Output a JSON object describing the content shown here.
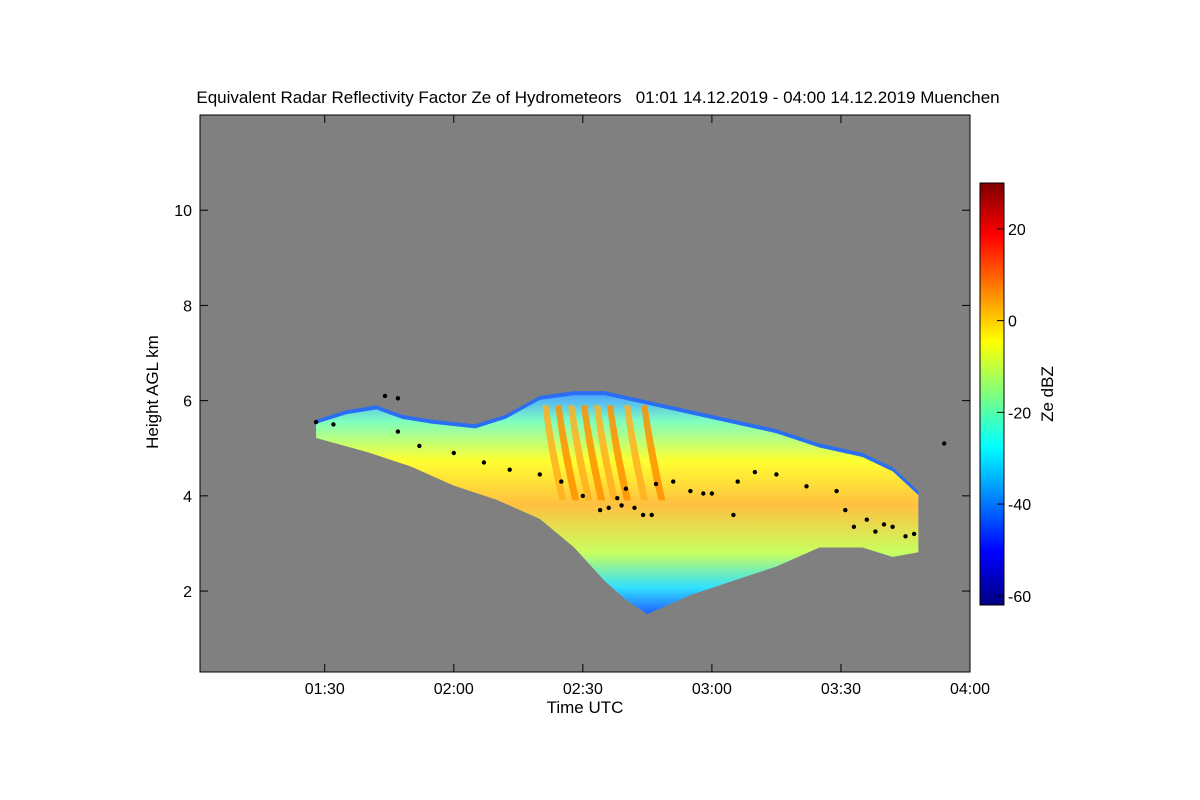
{
  "chart_data": {
    "type": "heatmap",
    "title": "Equivalent Radar Reflectivity Factor Ze of Hydrometeors   01:01 14.12.2019 - 04:00 14.12.2019 Muenchen",
    "xlabel": "Time UTC",
    "ylabel": "Height AGL km",
    "colorbar_label": "Ze dBZ",
    "xlim": [
      "01:01",
      "04:00"
    ],
    "ylim": [
      0.3,
      12.0
    ],
    "x_ticks": [
      "01:30",
      "02:00",
      "02:30",
      "03:00",
      "03:30",
      "04:00"
    ],
    "y_ticks": [
      2,
      4,
      6,
      8,
      10
    ],
    "colorbar_range": [
      -62,
      30
    ],
    "colorbar_ticks": [
      -60,
      -40,
      -20,
      0,
      20
    ],
    "colormap": [
      "#00007f",
      "#0000ff",
      "#007fff",
      "#00ffff",
      "#7fff7f",
      "#ffff00",
      "#ff7f00",
      "#ff0000",
      "#7f0000"
    ],
    "background_color": "#808080",
    "cloud": {
      "top_km": [
        [
          "01:28",
          5.6
        ],
        [
          "01:35",
          5.8
        ],
        [
          "01:42",
          5.9
        ],
        [
          "01:48",
          5.7
        ],
        [
          "01:55",
          5.6
        ],
        [
          "02:05",
          5.5
        ],
        [
          "02:12",
          5.7
        ],
        [
          "02:20",
          6.1
        ],
        [
          "02:28",
          6.2
        ],
        [
          "02:35",
          6.2
        ],
        [
          "02:45",
          6.0
        ],
        [
          "02:55",
          5.8
        ],
        [
          "03:05",
          5.6
        ],
        [
          "03:15",
          5.4
        ],
        [
          "03:25",
          5.1
        ],
        [
          "03:35",
          4.9
        ],
        [
          "03:42",
          4.6
        ],
        [
          "03:48",
          4.1
        ]
      ],
      "base_km": [
        [
          "01:28",
          5.3
        ],
        [
          "01:40",
          5.0
        ],
        [
          "01:50",
          4.7
        ],
        [
          "02:00",
          4.3
        ],
        [
          "02:10",
          4.0
        ],
        [
          "02:20",
          3.6
        ],
        [
          "02:28",
          3.0
        ],
        [
          "02:35",
          2.3
        ],
        [
          "02:40",
          1.9
        ],
        [
          "02:45",
          1.6
        ],
        [
          "02:55",
          2.0
        ],
        [
          "03:05",
          2.3
        ],
        [
          "03:15",
          2.6
        ],
        [
          "03:25",
          3.0
        ],
        [
          "03:35",
          3.0
        ],
        [
          "03:42",
          2.8
        ],
        [
          "03:48",
          2.9
        ]
      ],
      "core_dbz_max": 10
    },
    "melting_layer_km": [
      [
        "01:28",
        5.55
      ],
      [
        "01:32",
        5.5
      ],
      [
        "01:44",
        6.1
      ],
      [
        "01:47",
        6.05
      ],
      [
        "01:47",
        5.35
      ],
      [
        "01:52",
        5.05
      ],
      [
        "02:00",
        4.9
      ],
      [
        "02:07",
        4.7
      ],
      [
        "02:13",
        4.55
      ],
      [
        "02:20",
        4.45
      ],
      [
        "02:25",
        4.3
      ],
      [
        "02:30",
        4.0
      ],
      [
        "02:34",
        3.7
      ],
      [
        "02:36",
        3.75
      ],
      [
        "02:38",
        3.95
      ],
      [
        "02:39",
        3.8
      ],
      [
        "02:40",
        4.15
      ],
      [
        "02:42",
        3.75
      ],
      [
        "02:44",
        3.6
      ],
      [
        "02:46",
        3.6
      ],
      [
        "02:47",
        4.25
      ],
      [
        "02:51",
        4.3
      ],
      [
        "02:55",
        4.1
      ],
      [
        "02:58",
        4.05
      ],
      [
        "03:00",
        4.05
      ],
      [
        "03:05",
        3.6
      ],
      [
        "03:06",
        4.3
      ],
      [
        "03:10",
        4.5
      ],
      [
        "03:15",
        4.45
      ],
      [
        "03:22",
        4.2
      ],
      [
        "03:29",
        4.1
      ],
      [
        "03:31",
        3.7
      ],
      [
        "03:33",
        3.35
      ],
      [
        "03:36",
        3.5
      ],
      [
        "03:38",
        3.25
      ],
      [
        "03:40",
        3.4
      ],
      [
        "03:42",
        3.35
      ],
      [
        "03:45",
        3.15
      ],
      [
        "03:47",
        3.2
      ],
      [
        "03:54",
        5.1
      ]
    ]
  }
}
